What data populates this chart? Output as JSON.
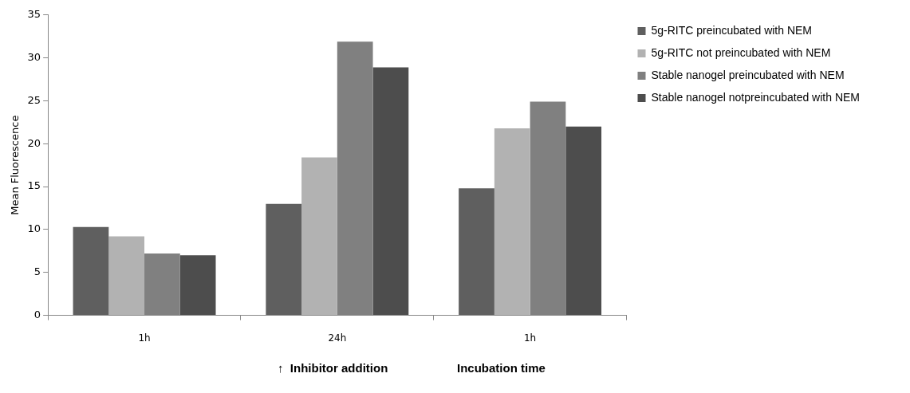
{
  "chart_data": {
    "type": "bar",
    "categories": [
      "1h",
      "24h",
      "1h"
    ],
    "series": [
      {
        "name": "5g-RITC preincubated with NEM",
        "color": "#5f5f5f",
        "values": [
          10.3,
          13.0,
          14.8
        ]
      },
      {
        "name": "5g-RITC not preincubated with NEM",
        "color": "#b2b2b2",
        "values": [
          9.2,
          18.4,
          21.8
        ]
      },
      {
        "name": "Stable nanogel preincubated with NEM",
        "color": "#808080",
        "values": [
          7.2,
          31.9,
          24.9
        ]
      },
      {
        "name": "Stable nanogel notpreincubated with NEM",
        "color": "#4d4d4d",
        "values": [
          7.0,
          28.9,
          22.0
        ]
      }
    ],
    "ylabel": "Mean Fluorescence",
    "xlabel": "Incubation time",
    "annotations": [
      "↑  Inhibitor addition"
    ],
    "ylim": [
      0,
      35
    ],
    "yticks": [
      0,
      5,
      10,
      15,
      20,
      25,
      30,
      35
    ],
    "grid": false,
    "legend": "top right"
  }
}
